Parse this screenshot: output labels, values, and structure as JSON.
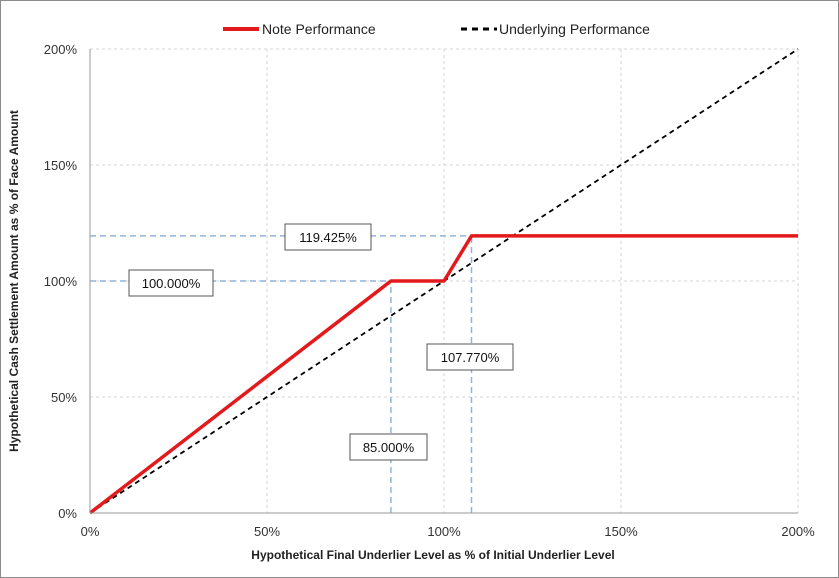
{
  "chart_data": {
    "type": "line",
    "title": "",
    "xlabel": "Hypothetical Final Underlier Level as % of Initial Underlier Level",
    "ylabel": "Hypothetical Cash Settlement Amount as % of Face Amount",
    "xlim": [
      0,
      200
    ],
    "ylim": [
      0,
      200
    ],
    "x_ticks": [
      "0%",
      "50%",
      "100%",
      "150%",
      "200%"
    ],
    "y_ticks": [
      "0%",
      "50%",
      "100%",
      "150%",
      "200%"
    ],
    "grid": true,
    "legend_position": "top",
    "series": [
      {
        "name": "Note Performance",
        "color": "#e31a1c",
        "style": "solid",
        "x": [
          0,
          85,
          100,
          107.77,
          200
        ],
        "y": [
          0,
          100,
          100,
          119.425,
          119.425
        ]
      },
      {
        "name": "Underlying Performance",
        "color": "#000000",
        "style": "dashed",
        "x": [
          0,
          200
        ],
        "y": [
          0,
          200
        ]
      }
    ],
    "reference_lines": [
      {
        "orientation": "horizontal",
        "value": 100,
        "label": "100.000%"
      },
      {
        "orientation": "horizontal",
        "value": 119.425,
        "label": "119.425%"
      },
      {
        "orientation": "vertical",
        "value": 85,
        "label": "85.000%"
      },
      {
        "orientation": "vertical",
        "value": 107.77,
        "label": "107.770%"
      }
    ]
  }
}
